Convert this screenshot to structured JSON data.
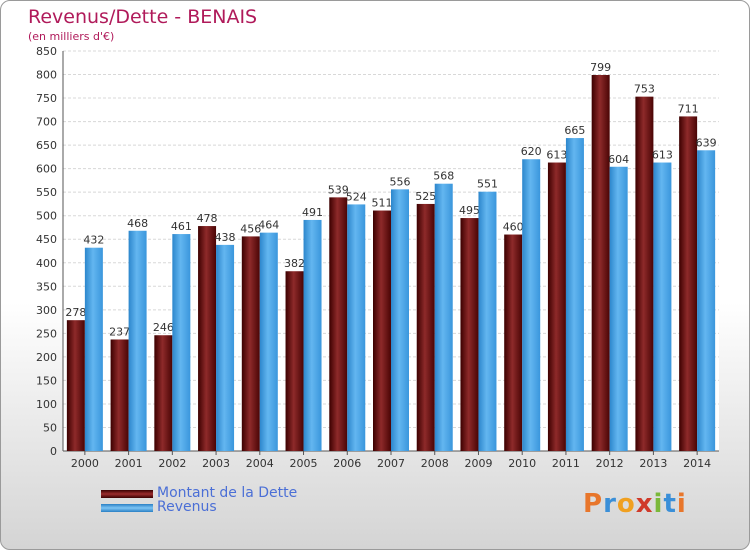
{
  "chart_data": {
    "type": "bar",
    "title": "Revenus/Dette - BENAIS",
    "subtitle": "(en milliers d'€)",
    "categories": [
      "2000",
      "2001",
      "2002",
      "2003",
      "2004",
      "2005",
      "2006",
      "2007",
      "2008",
      "2009",
      "2010",
      "2011",
      "2012",
      "2013",
      "2014"
    ],
    "series": [
      {
        "name": "Montant de la Dette",
        "color": "#7a1a1a",
        "values": [
          278,
          237,
          246,
          478,
          456,
          382,
          539,
          511,
          525,
          495,
          460,
          613,
          799,
          753,
          711
        ]
      },
      {
        "name": "Revenus",
        "color": "#4ca6e8",
        "values": [
          432,
          468,
          461,
          438,
          464,
          491,
          524,
          556,
          568,
          551,
          620,
          665,
          604,
          613,
          639
        ]
      }
    ],
    "ylim": [
      0,
      850
    ],
    "yticks": [
      0,
      50,
      100,
      150,
      200,
      250,
      300,
      350,
      400,
      450,
      500,
      550,
      600,
      650,
      700,
      750,
      800,
      850
    ],
    "grid": true,
    "legend_position": "bottom-left"
  },
  "logo": {
    "text": "Proxiti",
    "letters": [
      {
        "ch": "P",
        "color": "#e8762b"
      },
      {
        "ch": "r",
        "color": "#3a8fd8"
      },
      {
        "ch": "o",
        "color": "#f0a020"
      },
      {
        "ch": "x",
        "color": "#d03a2a"
      },
      {
        "ch": "i",
        "color": "#7ab83a"
      },
      {
        "ch": "t",
        "color": "#3a8fd8"
      },
      {
        "ch": "i",
        "color": "#e8762b"
      }
    ]
  }
}
